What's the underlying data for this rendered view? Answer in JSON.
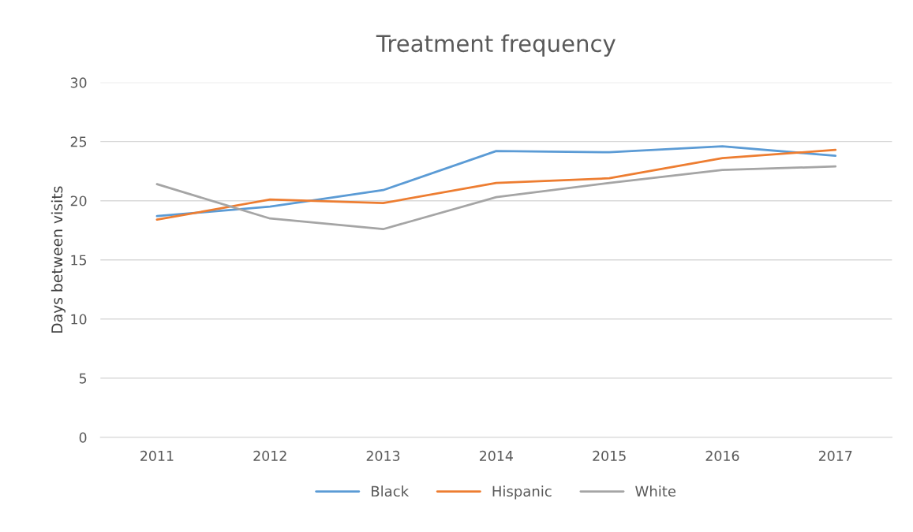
{
  "chart_data": {
    "type": "line",
    "title": "Treatment frequency",
    "ylabel": "Days between visits",
    "categories": [
      "2011",
      "2012",
      "2013",
      "2014",
      "2015",
      "2016",
      "2017"
    ],
    "series": [
      {
        "name": "Black",
        "color": "#5b9bd5",
        "values": [
          18.7,
          19.5,
          20.9,
          24.2,
          24.1,
          24.6,
          23.8
        ]
      },
      {
        "name": "Hispanic",
        "color": "#ed7d31",
        "values": [
          18.4,
          20.1,
          19.8,
          21.5,
          21.9,
          23.6,
          24.3
        ]
      },
      {
        "name": "White",
        "color": "#a5a5a5",
        "values": [
          21.4,
          18.5,
          17.6,
          20.3,
          21.5,
          22.6,
          22.9
        ]
      }
    ],
    "ylim": [
      0,
      30
    ],
    "yticks": [
      0,
      5,
      10,
      15,
      20,
      25,
      30
    ],
    "grid": "y",
    "legend": "bottom",
    "marker": "none",
    "line_style": "solid"
  }
}
